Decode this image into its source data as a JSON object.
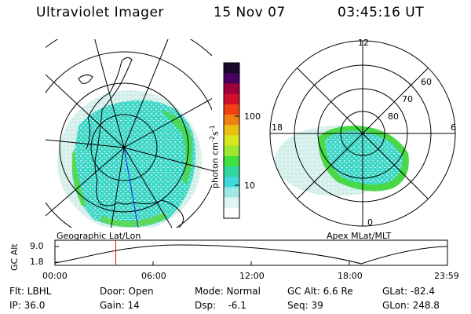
{
  "header": {
    "instrument": "Ultraviolet Imager",
    "date": "15 Nov 07",
    "time": "03:45:16 UT"
  },
  "left_map": {
    "caption": "Geographic Lat/Lon"
  },
  "right_map": {
    "caption": "Apex MLat/MLT",
    "mlt_labels": {
      "top": "12",
      "left": "18",
      "right": "6",
      "bottom": "0"
    },
    "lat_labels": [
      "60",
      "70",
      "80"
    ]
  },
  "colorbar": {
    "label": "photon cm",
    "unit_exp1": "-2",
    "unit_s": "s",
    "unit_exp2": "-1",
    "ticks": [
      "100",
      "10"
    ],
    "colors": [
      "#1a0a2a",
      "#4a0060",
      "#a0003a",
      "#d0102a",
      "#f04010",
      "#f08010",
      "#e8c010",
      "#d8e820",
      "#a0e830",
      "#40e040",
      "#30d8a0",
      "#40d8d8",
      "#a0e8e8",
      "#e0f4f4",
      "#ffffff"
    ]
  },
  "altitude_plot": {
    "ylabel": "GC Alt",
    "yticks": [
      "9.0",
      "1.8"
    ],
    "xticks": [
      "00:00",
      "06:00",
      "12:00",
      "18:00",
      "23:59"
    ],
    "current_time_fraction": 0.155
  },
  "status": {
    "flt": "Flt: LBHL",
    "door": "Door: Open",
    "mode": "Mode: Normal",
    "gc_alt": "GC Alt: 6.6 Re",
    "glat": "GLat: -82.4",
    "ip": "IP: 36.0",
    "gain": "Gain: 14",
    "dsp": "Dsp:    -6.1",
    "seq": "Seq: 39",
    "glon": "GLon: 248.8"
  }
}
